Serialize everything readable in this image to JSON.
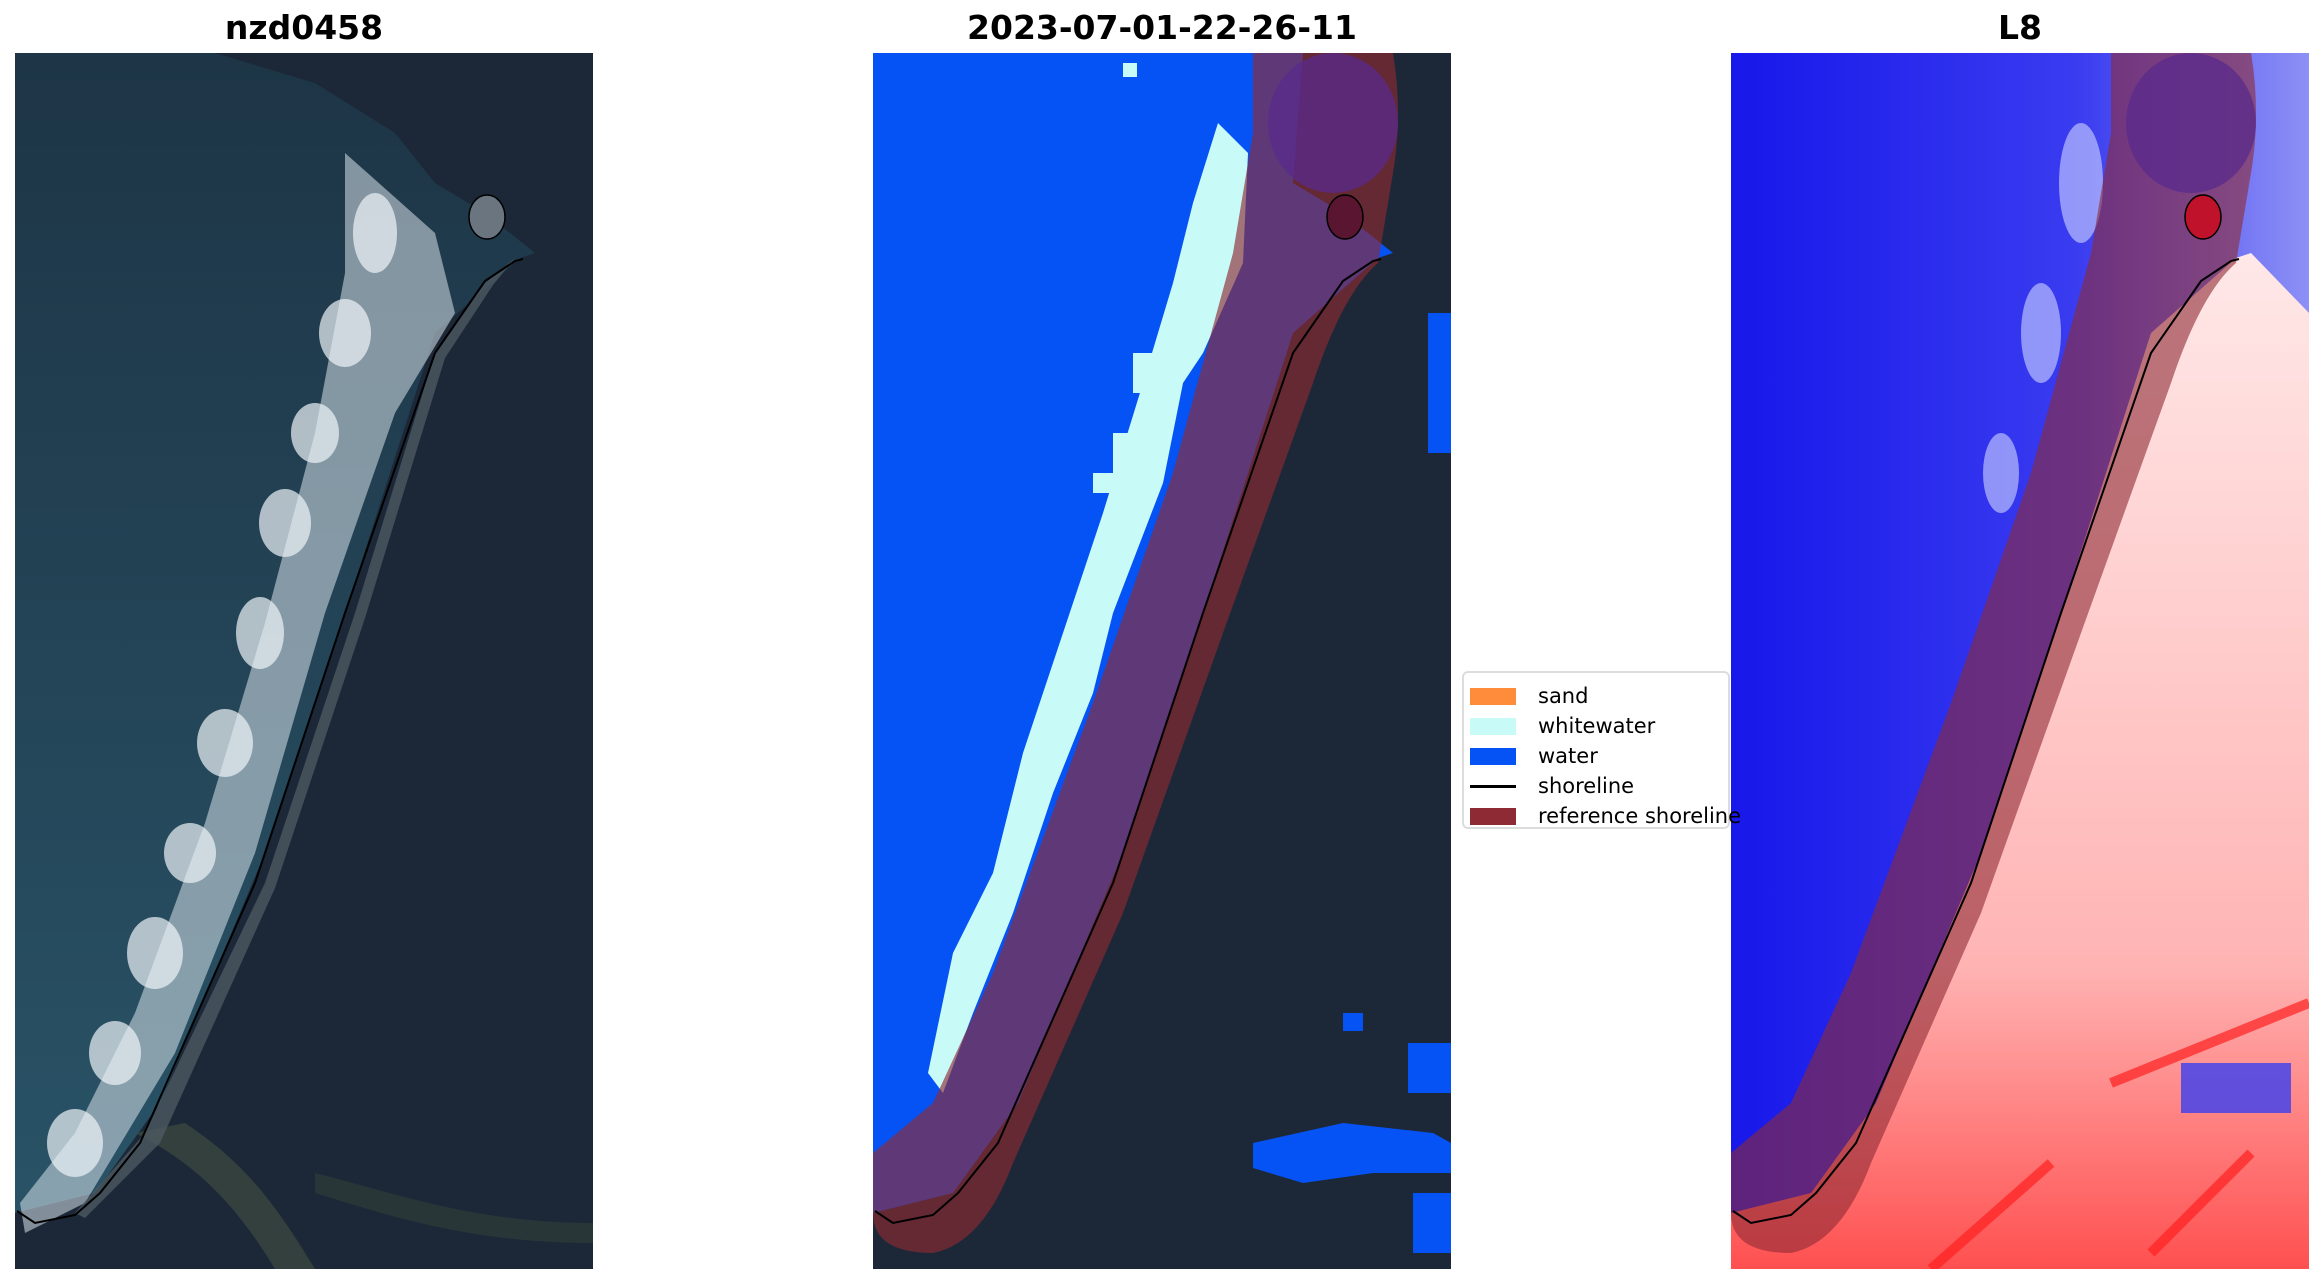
{
  "panels": [
    {
      "title": "nzd0458"
    },
    {
      "title": "2023-07-01-22-26-11"
    },
    {
      "title": "L8"
    }
  ],
  "legend": {
    "items": [
      {
        "label": "sand",
        "color": "#ff8c3a",
        "kind": "patch"
      },
      {
        "label": "whitewater",
        "color": "#c8fbf8",
        "kind": "patch"
      },
      {
        "label": "water",
        "color": "#0653f5",
        "kind": "patch"
      },
      {
        "label": "shoreline",
        "color": "#000000",
        "kind": "line"
      },
      {
        "label": "reference shoreline",
        "color": "#8e2a33",
        "kind": "patch"
      }
    ]
  },
  "colors": {
    "ocean": "#1f4458",
    "land": "#1c2838",
    "water_class": "#0653f5",
    "whitewater_class": "#c8fbf8",
    "reference_buffer": "#8e2a33",
    "index_water": "#1f20f0",
    "index_land": "#ffdede"
  }
}
